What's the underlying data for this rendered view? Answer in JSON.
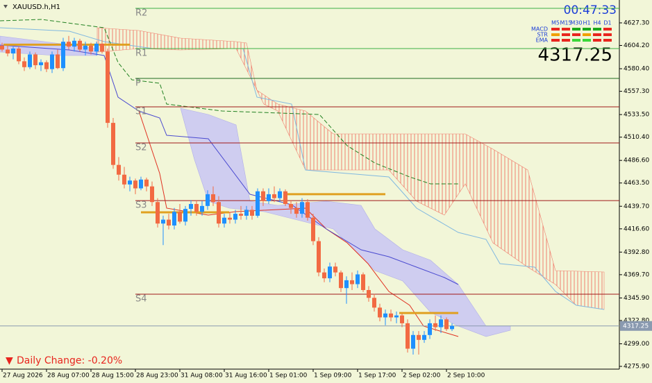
{
  "chart_data": {
    "type": "candlestick",
    "title": "XAUUSD.h,H1",
    "clock": "00:47:33",
    "timeframes": [
      "M5",
      "M15",
      "M30",
      "H1",
      "H4",
      "D1"
    ],
    "signals": [
      {
        "name": "MACD",
        "colors": [
          "#e8251e",
          "#e8251e",
          "#1aa81a",
          "#1aa81a",
          "#1aa81a",
          "#e8251e"
        ]
      },
      {
        "name": "STR",
        "colors": [
          "#f0a000",
          "#e8251e",
          "#e8251e",
          "#f0a000",
          "#e8251e",
          "#e8251e"
        ]
      },
      {
        "name": "EMA",
        "colors": [
          "#e8251e",
          "#e8251e",
          "#3ad83a",
          "#3ad83a",
          "#e8251e",
          "#e8251e"
        ]
      }
    ],
    "current_price": 4317.25,
    "daily_change": "Daily Change: -0.20%",
    "down_arrow": "▼",
    "up_color": "#1e90ff",
    "down_color": "#f26a43",
    "ylim": [
      4274.5,
      4650.7
    ],
    "yticks": [
      {
        "value": 4627.3,
        "label": "4627.30"
      },
      {
        "value": 4604.2,
        "label": "4604.20"
      },
      {
        "value": 4580.4,
        "label": "4580.40"
      },
      {
        "value": 4557.3,
        "label": "4557.30"
      },
      {
        "value": 4533.5,
        "label": "4533.50"
      },
      {
        "value": 4510.4,
        "label": "4510.40"
      },
      {
        "value": 4486.6,
        "label": "4486.60"
      },
      {
        "value": 4463.5,
        "label": "4463.50"
      },
      {
        "value": 4439.7,
        "label": "4439.70"
      },
      {
        "value": 4416.6,
        "label": "4416.60"
      },
      {
        "value": 4392.8,
        "label": "4392.80"
      },
      {
        "value": 4369.7,
        "label": "4369.70"
      },
      {
        "value": 4345.9,
        "label": "4345.90"
      },
      {
        "value": 4322.8,
        "label": "4322.80"
      },
      {
        "value": 4299,
        "label": "4299.00"
      },
      {
        "value": 4275.9,
        "label": "4275.90"
      }
    ],
    "pivots": [
      {
        "name": "R2",
        "value": 4642.2,
        "color": "#3cb043"
      },
      {
        "name": "R1",
        "value": 4601.0,
        "color": "#3cb043"
      },
      {
        "name": "P",
        "value": 4570.5,
        "color": "#1f6b1f"
      },
      {
        "name": "S1",
        "value": 4541.4,
        "color": "#a01818"
      },
      {
        "name": "S2",
        "value": 4504.5,
        "color": "#a01818"
      },
      {
        "name": "S3",
        "value": 4445.5,
        "color": "#a01818"
      },
      {
        "name": "S4",
        "value": 4349.7,
        "color": "#a01818"
      }
    ],
    "levels": [
      4605,
      4452,
      4433.5,
      4330.5
    ],
    "level_color": "#e0a020",
    "categories": [
      "27 Aug 2026",
      null,
      null,
      null,
      null,
      null,
      null,
      null,
      "28 Aug 07:00",
      null,
      null,
      null,
      null,
      null,
      null,
      null,
      "28 Aug 15:00",
      null,
      null,
      null,
      null,
      null,
      null,
      null,
      "28 Aug 23:00",
      null,
      null,
      null,
      null,
      null,
      null,
      null,
      "31 Aug 08:00",
      null,
      null,
      null,
      null,
      null,
      null,
      null,
      "31 Aug 16:00",
      null,
      null,
      null,
      null,
      null,
      null,
      null,
      "1 Sep 01:00",
      null,
      null,
      null,
      null,
      null,
      null,
      null,
      "1 Sep 09:00",
      null,
      null,
      null,
      null,
      null,
      null,
      null,
      "1 Sep 17:00",
      null,
      null,
      null,
      null,
      null,
      null,
      null,
      "2 Sep 02:00",
      null,
      null,
      null,
      null,
      null,
      null,
      null,
      "2 Sep 10:00",
      null
    ],
    "ohlc": [
      [
        4604,
        4607,
        4598,
        4600
      ],
      [
        4600,
        4604,
        4593,
        4596
      ],
      [
        4596,
        4603,
        4590,
        4601
      ],
      [
        4601,
        4603,
        4585,
        4588
      ],
      [
        4588,
        4592,
        4578,
        4582
      ],
      [
        4582,
        4598,
        4580,
        4595
      ],
      [
        4595,
        4597,
        4580,
        4584
      ],
      [
        4584,
        4590,
        4578,
        4587
      ],
      [
        4587,
        4589,
        4577,
        4580
      ],
      [
        4580,
        4598,
        4576,
        4595
      ],
      [
        4595,
        4600,
        4580,
        4581
      ],
      [
        4581,
        4612,
        4578,
        4608
      ],
      [
        4608,
        4614,
        4600,
        4603
      ],
      [
        4603,
        4612,
        4598,
        4609
      ],
      [
        4609,
        4611,
        4598,
        4600
      ],
      [
        4600,
        4608,
        4594,
        4604
      ],
      [
        4604,
        4607,
        4595,
        4598
      ],
      [
        4598,
        4608,
        4594,
        4606
      ],
      [
        4606,
        4610,
        4596,
        4598
      ],
      [
        4598,
        4601,
        4520,
        4525
      ],
      [
        4525,
        4530,
        4478,
        4482
      ],
      [
        4482,
        4490,
        4466,
        4472
      ],
      [
        4472,
        4480,
        4458,
        4462
      ],
      [
        4462,
        4470,
        4455,
        4466
      ],
      [
        4466,
        4468,
        4452,
        4458
      ],
      [
        4458,
        4470,
        4456,
        4467
      ],
      [
        4467,
        4469,
        4455,
        4460
      ],
      [
        4460,
        4465,
        4440,
        4444
      ],
      [
        4444,
        4448,
        4418,
        4422
      ],
      [
        4422,
        4430,
        4400,
        4426
      ],
      [
        4426,
        4432,
        4416,
        4420
      ],
      [
        4420,
        4438,
        4416,
        4434
      ],
      [
        4434,
        4442,
        4422,
        4424
      ],
      [
        4424,
        4440,
        4420,
        4437
      ],
      [
        4437,
        4446,
        4430,
        4442
      ],
      [
        4442,
        4446,
        4430,
        4434
      ],
      [
        4434,
        4445,
        4430,
        4440
      ],
      [
        4440,
        4456,
        4436,
        4452
      ],
      [
        4452,
        4460,
        4440,
        4444
      ],
      [
        4444,
        4450,
        4418,
        4422
      ],
      [
        4422,
        4432,
        4418,
        4428
      ],
      [
        4428,
        4434,
        4422,
        4426
      ],
      [
        4426,
        4436,
        4422,
        4432
      ],
      [
        4432,
        4440,
        4426,
        4430
      ],
      [
        4430,
        4440,
        4426,
        4436
      ],
      [
        4436,
        4440,
        4426,
        4430
      ],
      [
        4430,
        4458,
        4428,
        4455
      ],
      [
        4455,
        4458,
        4440,
        4445
      ],
      [
        4445,
        4458,
        4442,
        4452
      ],
      [
        4452,
        4460,
        4444,
        4448
      ],
      [
        4448,
        4458,
        4444,
        4455
      ],
      [
        4455,
        4457,
        4440,
        4442
      ],
      [
        4442,
        4446,
        4432,
        4438
      ],
      [
        4438,
        4444,
        4428,
        4432
      ],
      [
        4432,
        4448,
        4428,
        4444
      ],
      [
        4444,
        4447,
        4425,
        4428
      ],
      [
        4428,
        4432,
        4400,
        4404
      ],
      [
        4404,
        4408,
        4368,
        4372
      ],
      [
        4372,
        4376,
        4362,
        4366
      ],
      [
        4366,
        4382,
        4362,
        4378
      ],
      [
        4378,
        4382,
        4368,
        4372
      ],
      [
        4372,
        4374,
        4352,
        4356
      ],
      [
        4356,
        4368,
        4340,
        4364
      ],
      [
        4364,
        4372,
        4354,
        4360
      ],
      [
        4360,
        4374,
        4356,
        4370
      ],
      [
        4370,
        4372,
        4352,
        4354
      ],
      [
        4354,
        4358,
        4342,
        4346
      ],
      [
        4346,
        4350,
        4332,
        4336
      ],
      [
        4336,
        4340,
        4322,
        4326
      ],
      [
        4326,
        4334,
        4318,
        4330
      ],
      [
        4330,
        4334,
        4322,
        4326
      ],
      [
        4326,
        4332,
        4320,
        4328
      ],
      [
        4328,
        4330,
        4316,
        4320
      ],
      [
        4320,
        4324,
        4290,
        4294
      ],
      [
        4294,
        4312,
        4288,
        4308
      ],
      [
        4308,
        4312,
        4288,
        4303
      ],
      [
        4303,
        4312,
        4300,
        4308
      ],
      [
        4308,
        4324,
        4304,
        4320
      ],
      [
        4320,
        4328,
        4312,
        4316
      ],
      [
        4316,
        4328,
        4310,
        4324
      ],
      [
        4324,
        4326,
        4312,
        4314
      ],
      [
        4314,
        4320,
        4312,
        4317.25
      ]
    ]
  }
}
